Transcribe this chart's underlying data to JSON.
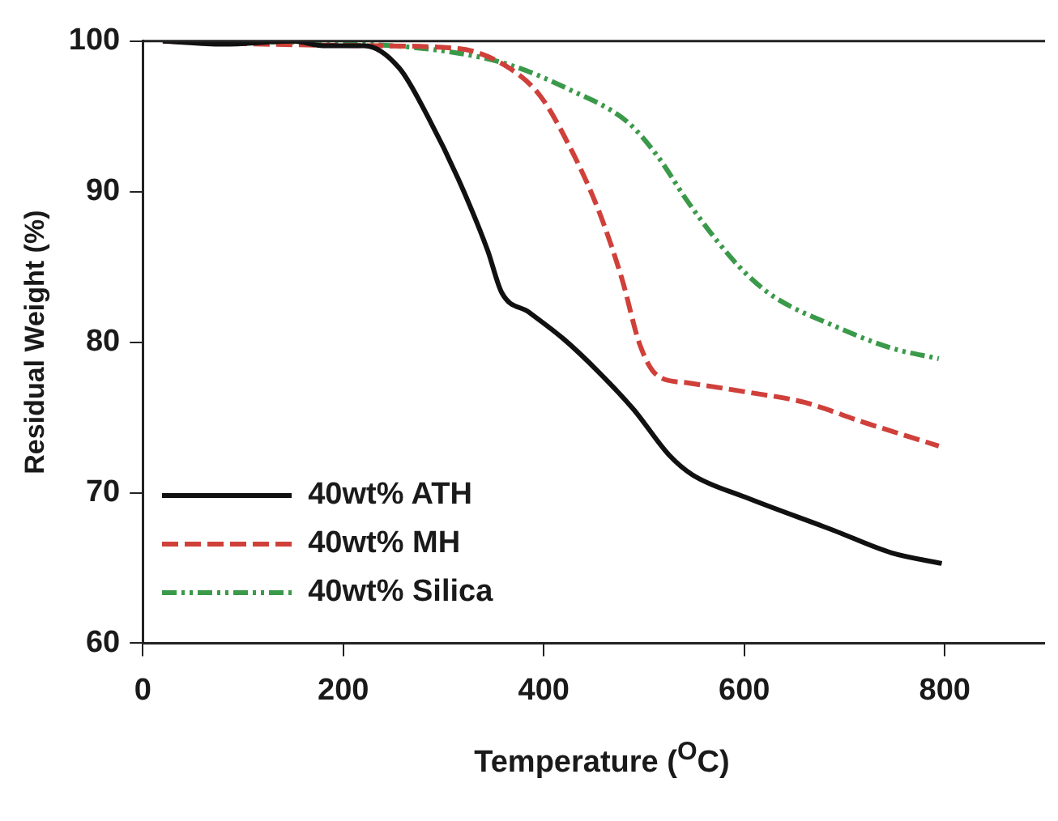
{
  "chart_data": {
    "type": "line",
    "xlabel": "Temperature ($^{O}$C)",
    "ylabel": "Residual Weight (%)",
    "xlim": [
      0,
      900
    ],
    "xticks": [
      0,
      200,
      400,
      600,
      800
    ],
    "ylim": [
      60,
      100
    ],
    "yticks": [
      60,
      70,
      80,
      90,
      100
    ],
    "grid": false,
    "legend": "bottom left",
    "marker": "none",
    "series": [
      {
        "name": "40wt% ATH",
        "color": "#111111",
        "line_style": "solid",
        "x": [
          20,
          80,
          150,
          180,
          221,
          256,
          285,
          315,
          344,
          358,
          385,
          420,
          455,
          490,
          525,
          548,
          601,
          689,
          747,
          797
        ],
        "values": [
          100,
          99.8,
          100,
          99.7,
          99.7,
          98.2,
          94.9,
          90.8,
          86.1,
          83.3,
          82.0,
          80.2,
          78.0,
          75.5,
          72.5,
          71.2,
          69.7,
          67.5,
          66.0,
          65.3
        ]
      },
      {
        "name": "40wt% MH",
        "color": "#d0403a",
        "line_style": "dashed",
        "x": [
          20,
          120,
          220,
          315,
          361,
          396,
          425,
          455,
          478,
          496,
          513,
          543,
          601,
          660,
          718,
          794
        ],
        "values": [
          100,
          99.8,
          99.7,
          99.5,
          98.4,
          96.4,
          93.1,
          88.7,
          84.2,
          79.8,
          77.8,
          77.3,
          76.7,
          76.0,
          74.7,
          73.1
        ]
      },
      {
        "name": "40wt% Silica",
        "color": "#3a9a4a",
        "line_style": "dotted",
        "x": [
          22,
          221,
          315,
          367,
          425,
          484,
          513,
          543,
          572,
          601,
          630,
          689,
          747,
          794
        ],
        "values": [
          100,
          99.8,
          99.2,
          98.4,
          96.8,
          94.6,
          92.4,
          89.4,
          86.8,
          84.6,
          83.0,
          81.1,
          79.6,
          78.9
        ]
      }
    ]
  }
}
